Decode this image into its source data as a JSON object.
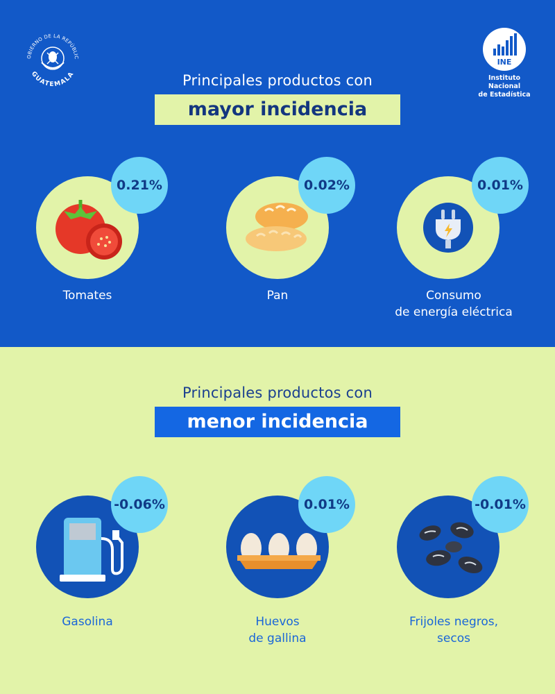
{
  "header": {
    "left_logo": {
      "text_top": "GOBIERNO DE LA REPÚBLICA",
      "text_bottom": "GUATEMALA"
    },
    "right_logo": {
      "abbr": "INE",
      "line1": "Instituto Nacional",
      "line2": "de Estadística"
    }
  },
  "top": {
    "subtitle": "Principales productos con",
    "highlight": "mayor incidencia",
    "items": [
      {
        "badge": "0.21%",
        "label": "Tomates",
        "icon": "tomato-icon"
      },
      {
        "badge": "0.02%",
        "label": "Pan",
        "icon": "bread-icon"
      },
      {
        "badge": "0.01%",
        "label_line1": "Consumo",
        "label_line2": "de energía eléctrica",
        "icon": "power-plug-icon"
      }
    ]
  },
  "bottom": {
    "subtitle": "Principales productos con",
    "highlight": "menor incidencia",
    "items": [
      {
        "badge": "-0.06%",
        "label": "Gasolina",
        "icon": "fuel-pump-icon"
      },
      {
        "badge": "0.01%",
        "label_line1": "Huevos",
        "label_line2": "de gallina",
        "icon": "eggs-icon"
      },
      {
        "badge": "-0.01%",
        "label_line1": "Frijoles negros,",
        "label_line2": "secos",
        "icon": "black-beans-icon"
      }
    ]
  },
  "colors": {
    "top_bg": "#1259C8",
    "bottom_bg": "#E2F3A9",
    "badge": "#6FD6F7",
    "highlight_top": "#E2F3A9",
    "highlight_bottom": "#1467E3"
  }
}
